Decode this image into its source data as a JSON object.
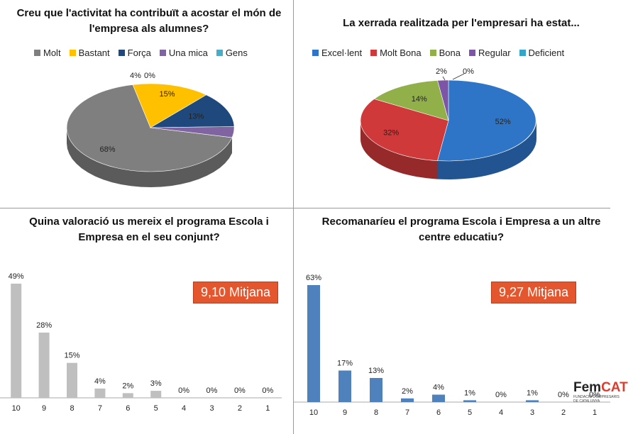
{
  "chart_data": [
    {
      "type": "pie",
      "title": "Creu que l'activitat ha contribuït a acostar el món de l'empresa als alumnes?",
      "legend_position": "top",
      "categories": [
        "Molt",
        "Bastant",
        "Força",
        "Una mica",
        "Gens"
      ],
      "values": [
        68,
        15,
        13,
        4,
        0
      ],
      "labels": [
        "68%",
        "15%",
        "13%",
        "4%",
        "0%"
      ],
      "colors": [
        "#7f7f7f",
        "#ffc000",
        "#1f497d",
        "#8064a2",
        "#4bacc6"
      ]
    },
    {
      "type": "pie",
      "title": "La xerrada realitzada per l'empresari ha estat...",
      "legend_position": "top",
      "categories": [
        "Excel·lent",
        "Molt Bona",
        "Bona",
        "Regular",
        "Deficient"
      ],
      "values": [
        52,
        32,
        14,
        2,
        0
      ],
      "labels": [
        "52%",
        "32%",
        "14%",
        "2%",
        "0%"
      ],
      "colors": [
        "#2e75c8",
        "#d0393a",
        "#92b04a",
        "#7c55a6",
        "#34a4c8"
      ]
    },
    {
      "type": "bar",
      "title": "Quina valoració us mereix el programa Escola i Empresa en el seu conjunt?",
      "categories": [
        "10",
        "9",
        "8",
        "7",
        "6",
        "5",
        "4",
        "3",
        "2",
        "1"
      ],
      "values": [
        49,
        28,
        15,
        4,
        2,
        3,
        0,
        0,
        0,
        0
      ],
      "labels": [
        "49%",
        "28%",
        "15%",
        "4%",
        "2%",
        "3%",
        "0%",
        "0%",
        "0%",
        "0%"
      ],
      "color": "#bfbfbf",
      "annotation": "9,10 Mitjana"
    },
    {
      "type": "bar",
      "title": "Recomanaríeu el programa Escola i Empresa a un altre centre educatiu?",
      "categories": [
        "10",
        "9",
        "8",
        "7",
        "6",
        "5",
        "4",
        "3",
        "2",
        "1"
      ],
      "values": [
        63,
        17,
        13,
        2,
        4,
        1,
        0,
        1,
        0,
        0
      ],
      "labels": [
        "63%",
        "17%",
        "13%",
        "2%",
        "4%",
        "1%",
        "0%",
        "1%",
        "0%",
        "0%"
      ],
      "color": "#4f81bd",
      "annotation": "9,27 Mitjana"
    }
  ],
  "logo": {
    "main": "Fem",
    "accent": "CAT",
    "sub1": "FUNDACIÓ D'EMPRESARIS",
    "sub2": "DE CATALUNYA"
  }
}
